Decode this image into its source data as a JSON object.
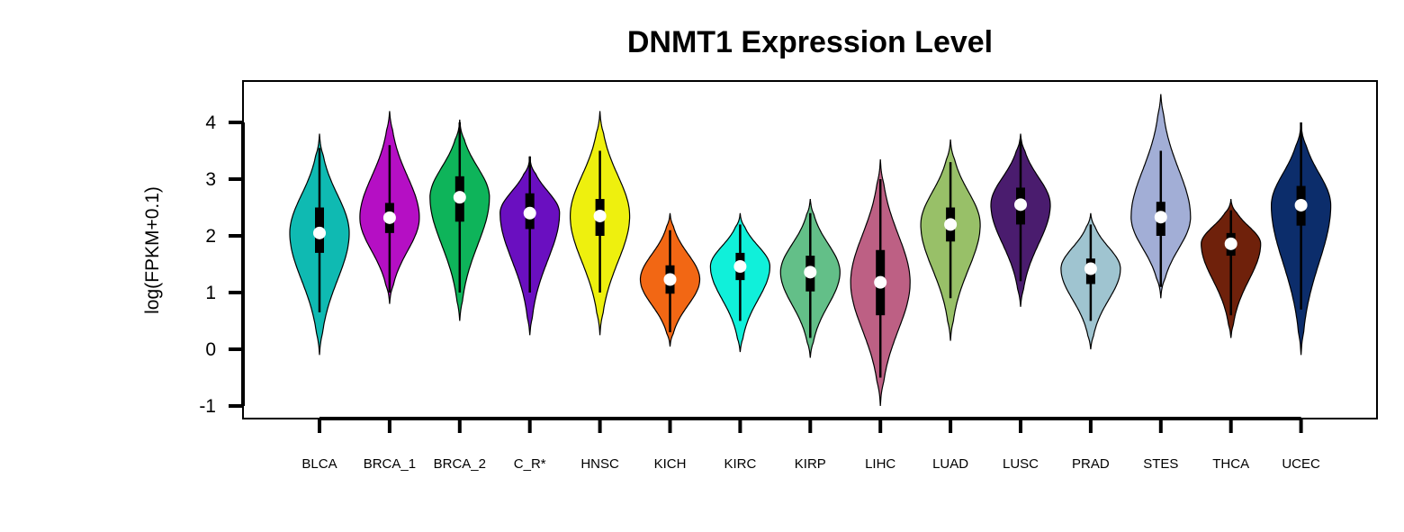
{
  "chart_data": {
    "type": "violin",
    "title": "DNMT1 Expression Level",
    "xlabel": "",
    "ylabel": "log(FPKM+0.1)",
    "ylim": [
      -1,
      4
    ],
    "yticks": [
      -1,
      0,
      1,
      2,
      3,
      4
    ],
    "grid": false,
    "legend": "none",
    "categories": [
      "BLCA",
      "BRCA_1",
      "BRCA_2",
      "C_R*",
      "HNSC",
      "KICH",
      "KIRC",
      "KIRP",
      "LIHC",
      "LUAD",
      "LUSC",
      "PRAD",
      "STES",
      "THCA",
      "UCEC"
    ],
    "series": [
      {
        "category": "BLCA",
        "color": "#0fbab2",
        "min": -0.1,
        "max": 3.8,
        "q1": 1.7,
        "median": 2.05,
        "q3": 2.5,
        "whisker_low": 0.65,
        "whisker_high": 3.55
      },
      {
        "category": "BRCA_1",
        "color": "#b50fc4",
        "min": 0.8,
        "max": 4.2,
        "q1": 2.05,
        "median": 2.32,
        "q3": 2.58,
        "whisker_low": 1.0,
        "whisker_high": 3.6
      },
      {
        "category": "BRCA_2",
        "color": "#0eb45a",
        "min": 0.5,
        "max": 4.05,
        "q1": 2.25,
        "median": 2.68,
        "q3": 3.05,
        "whisker_low": 1.0,
        "whisker_high": 4.0
      },
      {
        "category": "C_R*",
        "color": "#6a0fc0",
        "min": 0.25,
        "max": 3.4,
        "q1": 2.12,
        "median": 2.4,
        "q3": 2.75,
        "whisker_low": 1.0,
        "whisker_high": 3.4
      },
      {
        "category": "HNSC",
        "color": "#eef00e",
        "min": 0.25,
        "max": 4.2,
        "q1": 2.0,
        "median": 2.35,
        "q3": 2.65,
        "whisker_low": 1.0,
        "whisker_high": 3.5
      },
      {
        "category": "KICH",
        "color": "#f26714",
        "min": 0.05,
        "max": 2.4,
        "q1": 0.98,
        "median": 1.23,
        "q3": 1.48,
        "whisker_low": 0.3,
        "whisker_high": 2.1
      },
      {
        "category": "KIRC",
        "color": "#10f0da",
        "min": -0.05,
        "max": 2.4,
        "q1": 1.22,
        "median": 1.46,
        "q3": 1.7,
        "whisker_low": 0.5,
        "whisker_high": 2.2
      },
      {
        "category": "KIRP",
        "color": "#63bf88",
        "min": -0.15,
        "max": 2.65,
        "q1": 1.02,
        "median": 1.36,
        "q3": 1.65,
        "whisker_low": 0.2,
        "whisker_high": 2.4
      },
      {
        "category": "LIHC",
        "color": "#bd6084",
        "min": -1.0,
        "max": 3.35,
        "q1": 0.6,
        "median": 1.18,
        "q3": 1.75,
        "whisker_low": -0.5,
        "whisker_high": 3.0
      },
      {
        "category": "LUAD",
        "color": "#98c068",
        "min": 0.15,
        "max": 3.7,
        "q1": 1.9,
        "median": 2.2,
        "q3": 2.5,
        "whisker_low": 0.9,
        "whisker_high": 3.3
      },
      {
        "category": "LUSC",
        "color": "#4a1c6e",
        "min": 0.75,
        "max": 3.8,
        "q1": 2.2,
        "median": 2.55,
        "q3": 2.85,
        "whisker_low": 1.2,
        "whisker_high": 3.7
      },
      {
        "category": "PRAD",
        "color": "#9fc4d0",
        "min": 0.0,
        "max": 2.4,
        "q1": 1.15,
        "median": 1.42,
        "q3": 1.6,
        "whisker_low": 0.5,
        "whisker_high": 2.2
      },
      {
        "category": "STES",
        "color": "#a2aed6",
        "min": 0.9,
        "max": 4.5,
        "q1": 2.0,
        "median": 2.33,
        "q3": 2.6,
        "whisker_low": 1.1,
        "whisker_high": 3.5
      },
      {
        "category": "THCA",
        "color": "#6f210b",
        "min": 0.2,
        "max": 2.65,
        "q1": 1.65,
        "median": 1.86,
        "q3": 2.05,
        "whisker_low": 0.6,
        "whisker_high": 2.45
      },
      {
        "category": "UCEC",
        "color": "#0c2d6b",
        "min": -0.1,
        "max": 4.0,
        "q1": 2.18,
        "median": 2.54,
        "q3": 2.88,
        "whisker_low": 0.7,
        "whisker_high": 4.0
      }
    ]
  }
}
